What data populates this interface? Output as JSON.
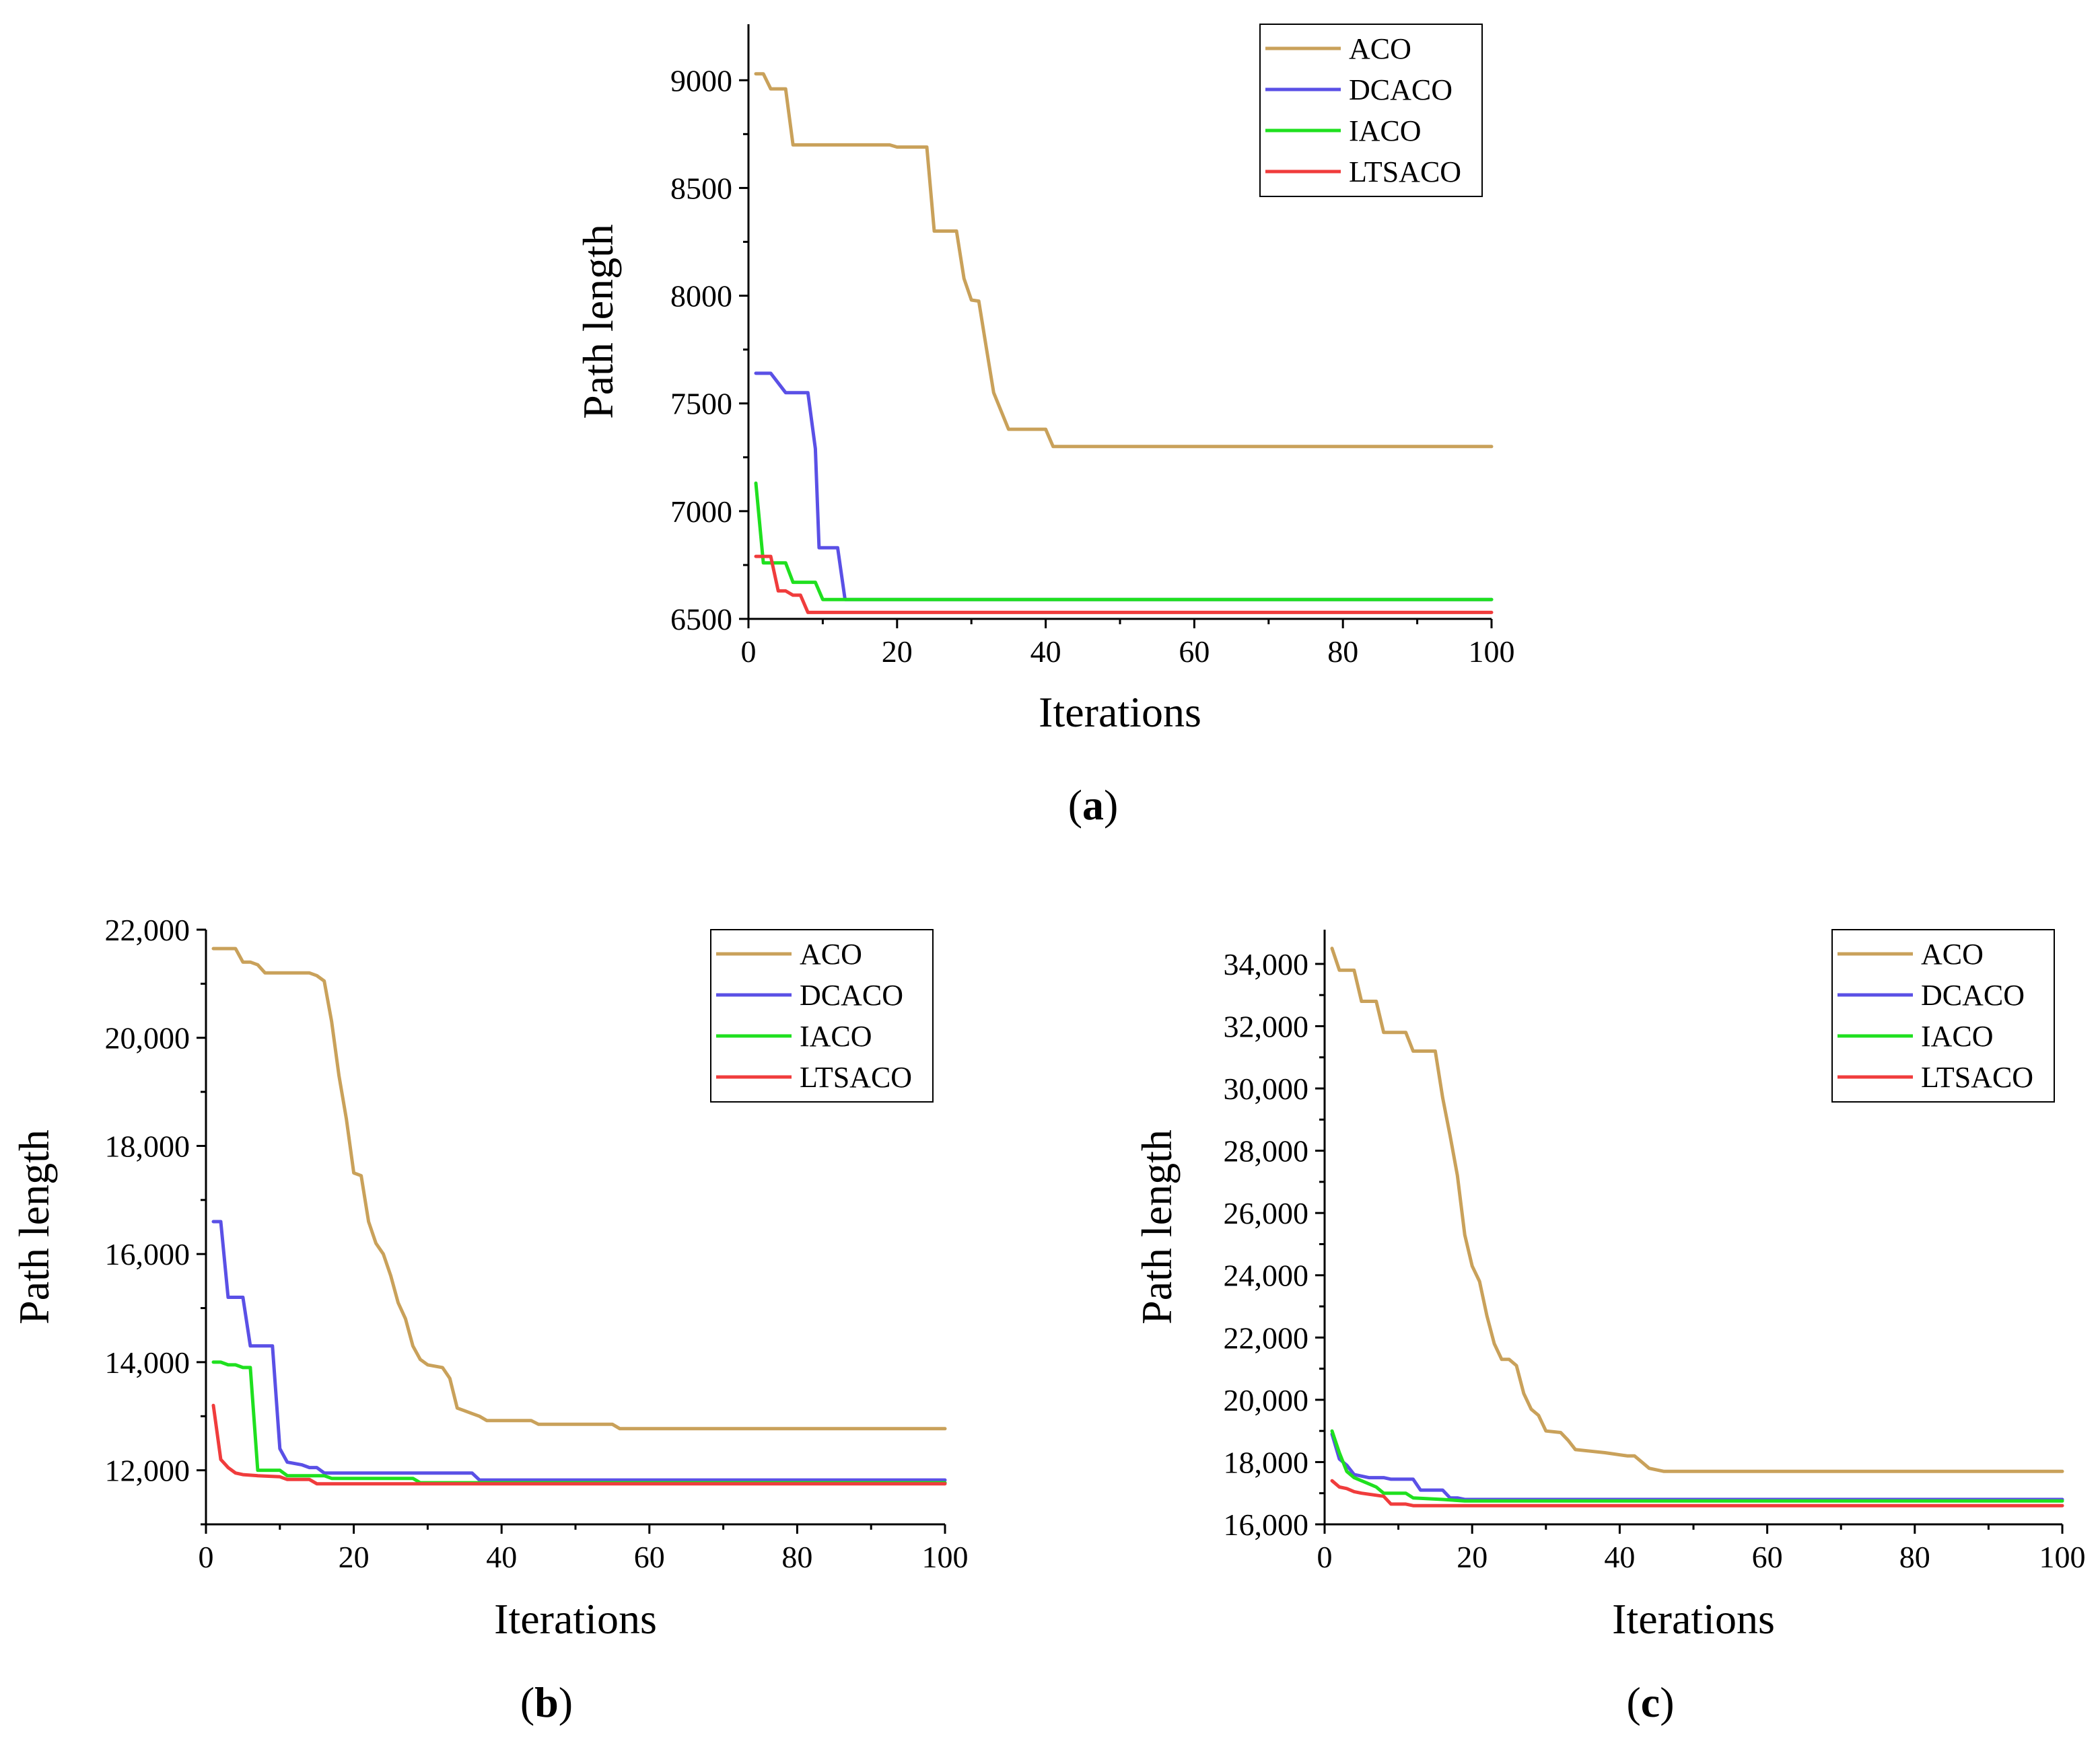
{
  "colors": {
    "ACO": "#C9A15A",
    "DCACO": "#5A50E6",
    "IACO": "#1FE01F",
    "LTSACO": "#F03C3C",
    "axis": "#000000"
  },
  "chart_data": [
    {
      "id": "a",
      "type": "line",
      "panel_label": "a",
      "xlabel": "Iterations",
      "ylabel": "Path length",
      "xlim": [
        0,
        100
      ],
      "ylim": [
        6500,
        9260
      ],
      "xticks": [
        0,
        20,
        40,
        60,
        80,
        100
      ],
      "yticks": [
        6500,
        7000,
        7500,
        8000,
        8500,
        9000
      ],
      "ytick_labels": [
        "6500",
        "7000",
        "7500",
        "8000",
        "8500",
        "9000"
      ],
      "legend": [
        "ACO",
        "DCACO",
        "IACO",
        "LTSACO"
      ],
      "legend_position": "top-right",
      "series": [
        {
          "name": "ACO",
          "points": [
            [
              1,
              9030
            ],
            [
              2,
              9030
            ],
            [
              3,
              8960
            ],
            [
              5,
              8960
            ],
            [
              6,
              8700
            ],
            [
              19,
              8700
            ],
            [
              20,
              8690
            ],
            [
              24,
              8690
            ],
            [
              25,
              8300
            ],
            [
              28,
              8300
            ],
            [
              29,
              8080
            ],
            [
              30,
              7980
            ],
            [
              31,
              7975
            ],
            [
              32,
              7760
            ],
            [
              33,
              7550
            ],
            [
              35,
              7380
            ],
            [
              40,
              7380
            ],
            [
              41,
              7300
            ],
            [
              100,
              7300
            ]
          ]
        },
        {
          "name": "DCACO",
          "points": [
            [
              1,
              7640
            ],
            [
              3,
              7640
            ],
            [
              5,
              7550
            ],
            [
              8,
              7550
            ],
            [
              9,
              7290
            ],
            [
              9.5,
              6830
            ],
            [
              12,
              6830
            ],
            [
              13,
              6590
            ],
            [
              100,
              6590
            ]
          ]
        },
        {
          "name": "IACO",
          "points": [
            [
              1,
              7130
            ],
            [
              2,
              6760
            ],
            [
              5,
              6760
            ],
            [
              6,
              6670
            ],
            [
              9,
              6670
            ],
            [
              10,
              6590
            ],
            [
              100,
              6590
            ]
          ]
        },
        {
          "name": "LTSACO",
          "points": [
            [
              1,
              6790
            ],
            [
              3,
              6790
            ],
            [
              4,
              6630
            ],
            [
              5,
              6630
            ],
            [
              6,
              6610
            ],
            [
              7,
              6610
            ],
            [
              8,
              6530
            ],
            [
              100,
              6530
            ]
          ]
        }
      ]
    },
    {
      "id": "b",
      "type": "line",
      "panel_label": "b",
      "xlabel": "Iterations",
      "ylabel": "Path length",
      "xlim": [
        0,
        100
      ],
      "ylim": [
        11000,
        22000
      ],
      "xticks": [
        0,
        20,
        40,
        60,
        80,
        100
      ],
      "yticks": [
        12000,
        14000,
        16000,
        18000,
        20000,
        22000
      ],
      "ytick_labels": [
        "12,000",
        "14,000",
        "16,000",
        "18,000",
        "20,000",
        "22,000"
      ],
      "legend": [
        "ACO",
        "DCACO",
        "IACO",
        "LTSACO"
      ],
      "legend_position": "top-right",
      "series": [
        {
          "name": "ACO",
          "points": [
            [
              1,
              21650
            ],
            [
              4,
              21650
            ],
            [
              5,
              21400
            ],
            [
              6,
              21400
            ],
            [
              7,
              21350
            ],
            [
              8,
              21200
            ],
            [
              14,
              21200
            ],
            [
              15,
              21150
            ],
            [
              16,
              21050
            ],
            [
              17,
              20300
            ],
            [
              18,
              19300
            ],
            [
              19,
              18500
            ],
            [
              20,
              17500
            ],
            [
              21,
              17450
            ],
            [
              22,
              16600
            ],
            [
              23,
              16200
            ],
            [
              24,
              16000
            ],
            [
              25,
              15600
            ],
            [
              26,
              15100
            ],
            [
              27,
              14800
            ],
            [
              28,
              14300
            ],
            [
              29,
              14050
            ],
            [
              30,
              13950
            ],
            [
              32,
              13900
            ],
            [
              33,
              13700
            ],
            [
              34,
              13150
            ],
            [
              35,
              13100
            ],
            [
              36,
              13050
            ],
            [
              37,
              13000
            ],
            [
              38,
              12920
            ],
            [
              44,
              12920
            ],
            [
              45,
              12850
            ],
            [
              55,
              12850
            ],
            [
              56,
              12770
            ],
            [
              100,
              12770
            ]
          ]
        },
        {
          "name": "DCACO",
          "points": [
            [
              1,
              16600
            ],
            [
              2,
              16600
            ],
            [
              3,
              15200
            ],
            [
              5,
              15200
            ],
            [
              6,
              14300
            ],
            [
              9,
              14300
            ],
            [
              10,
              12400
            ],
            [
              11,
              12150
            ],
            [
              13,
              12100
            ],
            [
              14,
              12050
            ],
            [
              15,
              12050
            ],
            [
              16,
              11950
            ],
            [
              36,
              11950
            ],
            [
              37,
              11820
            ],
            [
              100,
              11820
            ]
          ]
        },
        {
          "name": "IACO",
          "points": [
            [
              1,
              14000
            ],
            [
              2,
              14000
            ],
            [
              3,
              13950
            ],
            [
              4,
              13950
            ],
            [
              5,
              13900
            ],
            [
              6,
              13900
            ],
            [
              7,
              12000
            ],
            [
              10,
              12000
            ],
            [
              11,
              11900
            ],
            [
              16,
              11900
            ],
            [
              17,
              11850
            ],
            [
              28,
              11850
            ],
            [
              29,
              11770
            ],
            [
              100,
              11770
            ]
          ]
        },
        {
          "name": "LTSACO",
          "points": [
            [
              1,
              13200
            ],
            [
              2,
              12200
            ],
            [
              3,
              12050
            ],
            [
              4,
              11950
            ],
            [
              5,
              11920
            ],
            [
              7,
              11900
            ],
            [
              10,
              11880
            ],
            [
              11,
              11830
            ],
            [
              14,
              11830
            ],
            [
              15,
              11750
            ],
            [
              100,
              11750
            ]
          ]
        }
      ]
    },
    {
      "id": "c",
      "type": "line",
      "panel_label": "c",
      "xlabel": "Iterations",
      "ylabel": "Path length",
      "xlim": [
        0,
        100
      ],
      "ylim": [
        16000,
        35100
      ],
      "xticks": [
        0,
        20,
        40,
        60,
        80,
        100
      ],
      "yticks": [
        16000,
        18000,
        20000,
        22000,
        24000,
        26000,
        28000,
        30000,
        32000,
        34000
      ],
      "ytick_labels": [
        "16,000",
        "18,000",
        "20,000",
        "22,000",
        "24,000",
        "26,000",
        "28,000",
        "30,000",
        "32,000",
        "34,000"
      ],
      "legend": [
        "ACO",
        "DCACO",
        "IACO",
        "LTSACO"
      ],
      "legend_position": "top-right",
      "series": [
        {
          "name": "ACO",
          "points": [
            [
              1,
              34500
            ],
            [
              2,
              33800
            ],
            [
              4,
              33800
            ],
            [
              5,
              32800
            ],
            [
              7,
              32800
            ],
            [
              8,
              31800
            ],
            [
              11,
              31800
            ],
            [
              12,
              31200
            ],
            [
              15,
              31200
            ],
            [
              16,
              29700
            ],
            [
              17,
              28500
            ],
            [
              18,
              27200
            ],
            [
              19,
              25300
            ],
            [
              20,
              24300
            ],
            [
              21,
              23800
            ],
            [
              22,
              22700
            ],
            [
              23,
              21800
            ],
            [
              24,
              21300
            ],
            [
              25,
              21300
            ],
            [
              26,
              21100
            ],
            [
              27,
              20200
            ],
            [
              28,
              19700
            ],
            [
              29,
              19500
            ],
            [
              30,
              19000
            ],
            [
              32,
              18950
            ],
            [
              33,
              18700
            ],
            [
              34,
              18400
            ],
            [
              36,
              18350
            ],
            [
              38,
              18300
            ],
            [
              41,
              18200
            ],
            [
              42,
              18200
            ],
            [
              43,
              18000
            ],
            [
              44,
              17800
            ],
            [
              46,
              17700
            ],
            [
              100,
              17700
            ]
          ]
        },
        {
          "name": "DCACO",
          "points": [
            [
              1,
              18900
            ],
            [
              2,
              18100
            ],
            [
              3,
              17900
            ],
            [
              4,
              17600
            ],
            [
              6,
              17500
            ],
            [
              8,
              17500
            ],
            [
              9,
              17450
            ],
            [
              12,
              17450
            ],
            [
              13,
              17100
            ],
            [
              16,
              17100
            ],
            [
              17,
              16850
            ],
            [
              18,
              16850
            ],
            [
              19,
              16800
            ],
            [
              100,
              16800
            ]
          ]
        },
        {
          "name": "IACO",
          "points": [
            [
              1,
              19000
            ],
            [
              2,
              18300
            ],
            [
              3,
              17700
            ],
            [
              4,
              17500
            ],
            [
              5,
              17400
            ],
            [
              6,
              17300
            ],
            [
              7,
              17200
            ],
            [
              8,
              17000
            ],
            [
              11,
              17000
            ],
            [
              12,
              16850
            ],
            [
              16,
              16800
            ],
            [
              19,
              16750
            ],
            [
              100,
              16750
            ]
          ]
        },
        {
          "name": "LTSACO",
          "points": [
            [
              1,
              17400
            ],
            [
              2,
              17200
            ],
            [
              3,
              17150
            ],
            [
              4,
              17050
            ],
            [
              5,
              17000
            ],
            [
              8,
              16900
            ],
            [
              9,
              16650
            ],
            [
              11,
              16650
            ],
            [
              12,
              16600
            ],
            [
              100,
              16600
            ]
          ]
        }
      ]
    }
  ]
}
